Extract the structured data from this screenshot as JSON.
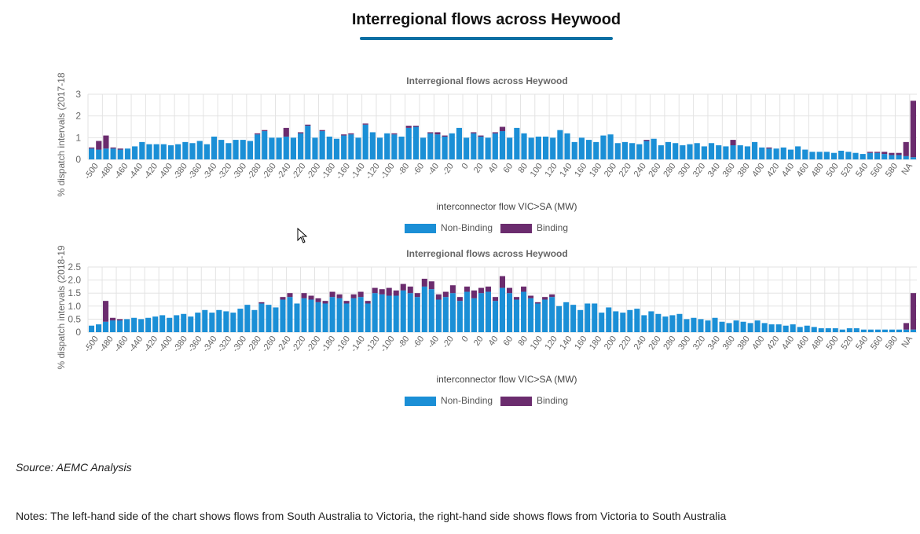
{
  "page": {
    "title": "Interregional flows across Heywood",
    "source": "Source: AEMC Analysis",
    "notes": "Notes: The left-hand side of the chart shows flows from South Australia to Victoria, the right-hand side shows flows from Victoria to South Australia"
  },
  "colors": {
    "non_binding": "#1b8fd6",
    "binding": "#6b2c6e",
    "grid": "#e3e3e3",
    "title_underline": "#0a6fa3"
  },
  "chart_data": [
    {
      "type": "bar",
      "stacked": true,
      "title": "Interregional flows across Heywood",
      "xlabel": "interconnector flow VIC>SA (MW)",
      "ylabel": "% dispatch intervals (2017-18",
      "ylim": [
        0,
        3
      ],
      "yticks": [
        "0",
        "1",
        "2",
        "3"
      ],
      "grid": true,
      "legend": "bottom-center",
      "x_tick_labels": [
        "-500",
        "-480",
        "-460",
        "-440",
        "-420",
        "-400",
        "-380",
        "-360",
        "-340",
        "-320",
        "-300",
        "-280",
        "-260",
        "-240",
        "-220",
        "-200",
        "-180",
        "-160",
        "-140",
        "-120",
        "-100",
        "-80",
        "-60",
        "-40",
        "-20",
        "0",
        "20",
        "40",
        "60",
        "80",
        "100",
        "120",
        "140",
        "160",
        "180",
        "200",
        "220",
        "240",
        "260",
        "280",
        "300",
        "320",
        "340",
        "360",
        "380",
        "400",
        "420",
        "440",
        "460",
        "480",
        "500",
        "520",
        "540",
        "560",
        "580",
        "NA"
      ],
      "series": [
        {
          "name": "Non-Binding",
          "values": [
            0.5,
            0.45,
            0.5,
            0.5,
            0.45,
            0.5,
            0.6,
            0.8,
            0.7,
            0.7,
            0.7,
            0.65,
            0.7,
            0.8,
            0.75,
            0.85,
            0.7,
            1.05,
            0.9,
            0.75,
            0.9,
            0.9,
            0.85,
            1.15,
            1.3,
            1.0,
            1.0,
            1.05,
            1.0,
            1.2,
            1.55,
            1.0,
            1.3,
            1.05,
            0.95,
            1.1,
            1.15,
            1.0,
            1.6,
            1.25,
            1.0,
            1.2,
            1.15,
            1.05,
            1.45,
            1.5,
            1.0,
            1.2,
            1.15,
            1.05,
            1.2,
            1.45,
            1.0,
            1.2,
            1.05,
            1.0,
            1.2,
            1.3,
            1.0,
            1.45,
            1.2,
            1.0,
            1.05,
            1.05,
            1.0,
            1.35,
            1.2,
            0.8,
            1.0,
            0.9,
            0.8,
            1.1,
            1.15,
            0.75,
            0.8,
            0.75,
            0.7,
            0.85,
            0.95,
            0.65,
            0.8,
            0.75,
            0.65,
            0.7,
            0.75,
            0.6,
            0.75,
            0.65,
            0.6,
            0.65,
            0.65,
            0.6,
            0.8,
            0.55,
            0.5,
            0.5,
            0.55,
            0.45,
            0.6,
            0.45,
            0.35,
            0.35,
            0.35,
            0.3,
            0.4,
            0.35,
            0.3,
            0.25,
            0.3,
            0.3,
            0.25,
            0.2,
            0.2,
            0.15,
            0.1
          ],
          "binding": [
            0.05,
            0.4,
            0.6,
            0.05,
            0.05,
            0.0,
            0.0,
            0.0,
            0.0,
            0.0,
            0.0,
            0.0,
            0.0,
            0.0,
            0.0,
            0.0,
            0.0,
            0.0,
            0.0,
            0.0,
            0.0,
            0.0,
            0.0,
            0.05,
            0.05,
            0.0,
            0.0,
            0.4,
            0.0,
            0.05,
            0.05,
            0.0,
            0.05,
            0.0,
            0.0,
            0.05,
            0.05,
            0.0,
            0.05,
            0.0,
            0.0,
            0.0,
            0.05,
            0.0,
            0.1,
            0.05,
            0.0,
            0.05,
            0.1,
            0.05,
            0.0,
            0.0,
            0.0,
            0.05,
            0.05,
            0.0,
            0.05,
            0.2,
            0.0,
            0.0,
            0.0,
            0.0,
            0.0,
            0.0,
            0.0,
            0.0,
            0.0,
            0.0,
            0.0,
            0.0,
            0.0,
            0.0,
            0.0,
            0.0,
            0.0,
            0.0,
            0.0,
            0.05,
            0.0,
            0.0,
            0.0,
            0.0,
            0.0,
            0.0,
            0.0,
            0.0,
            0.0,
            0.0,
            0.0,
            0.25,
            0.0,
            0.0,
            0.0,
            0.0,
            0.05,
            0.0,
            0.0,
            0.0,
            0.0,
            0.0,
            0.0,
            0.0,
            0.0,
            0.0,
            0.0,
            0.0,
            0.0,
            0.0,
            0.05,
            0.05,
            0.1,
            0.1,
            0.1,
            0.65,
            2.6
          ]
        }
      ]
    },
    {
      "type": "bar",
      "stacked": true,
      "title": "Interregional flows across Heywood",
      "xlabel": "interconnector flow VIC>SA (MW)",
      "ylabel": "% dispatch intervals (2018-19",
      "ylim": [
        0,
        2.5
      ],
      "yticks": [
        "0",
        "0.5",
        "1.0",
        "1.5",
        "2.0",
        "2.5"
      ],
      "grid": true,
      "legend": "bottom-center",
      "x_tick_labels": [
        "-500",
        "-480",
        "-460",
        "-440",
        "-420",
        "-400",
        "-380",
        "-360",
        "-340",
        "-320",
        "-300",
        "-280",
        "-260",
        "-240",
        "-220",
        "-200",
        "-180",
        "-160",
        "-140",
        "-120",
        "-100",
        "-80",
        "-60",
        "-40",
        "-20",
        "0",
        "20",
        "40",
        "60",
        "80",
        "100",
        "120",
        "140",
        "160",
        "180",
        "200",
        "220",
        "240",
        "260",
        "280",
        "300",
        "320",
        "340",
        "360",
        "380",
        "400",
        "420",
        "440",
        "460",
        "480",
        "500",
        "520",
        "540",
        "560",
        "580",
        "NA"
      ],
      "series": [
        {
          "name": "Non-Binding",
          "values": [
            0.25,
            0.3,
            0.4,
            0.45,
            0.45,
            0.5,
            0.55,
            0.5,
            0.55,
            0.6,
            0.65,
            0.55,
            0.65,
            0.7,
            0.6,
            0.75,
            0.85,
            0.75,
            0.85,
            0.8,
            0.75,
            0.9,
            1.05,
            0.85,
            1.1,
            1.05,
            0.95,
            1.25,
            1.35,
            1.1,
            1.3,
            1.25,
            1.15,
            1.1,
            1.35,
            1.3,
            1.1,
            1.3,
            1.35,
            1.1,
            1.5,
            1.45,
            1.4,
            1.4,
            1.6,
            1.5,
            1.35,
            1.75,
            1.65,
            1.25,
            1.35,
            1.5,
            1.2,
            1.55,
            1.3,
            1.5,
            1.55,
            1.2,
            1.7,
            1.5,
            1.25,
            1.55,
            1.3,
            1.1,
            1.25,
            1.35,
            1.0,
            1.15,
            1.05,
            0.85,
            1.1,
            1.1,
            0.75,
            0.95,
            0.8,
            0.75,
            0.85,
            0.9,
            0.65,
            0.8,
            0.7,
            0.6,
            0.65,
            0.7,
            0.5,
            0.55,
            0.5,
            0.45,
            0.55,
            0.4,
            0.35,
            0.45,
            0.4,
            0.35,
            0.45,
            0.35,
            0.3,
            0.3,
            0.25,
            0.3,
            0.2,
            0.25,
            0.2,
            0.15,
            0.15,
            0.15,
            0.1,
            0.15,
            0.15,
            0.1,
            0.1,
            0.1,
            0.1,
            0.1,
            0.1,
            0.1,
            0.1
          ],
          "binding": [
            0.0,
            0.0,
            0.8,
            0.1,
            0.05,
            0.0,
            0.0,
            0.0,
            0.0,
            0.0,
            0.0,
            0.0,
            0.0,
            0.0,
            0.0,
            0.0,
            0.0,
            0.0,
            0.0,
            0.0,
            0.0,
            0.0,
            0.0,
            0.0,
            0.05,
            0.0,
            0.0,
            0.1,
            0.15,
            0.0,
            0.2,
            0.15,
            0.15,
            0.1,
            0.2,
            0.15,
            0.1,
            0.15,
            0.2,
            0.1,
            0.2,
            0.2,
            0.3,
            0.2,
            0.25,
            0.25,
            0.15,
            0.3,
            0.3,
            0.2,
            0.2,
            0.3,
            0.15,
            0.2,
            0.3,
            0.2,
            0.2,
            0.15,
            0.45,
            0.2,
            0.1,
            0.2,
            0.1,
            0.05,
            0.1,
            0.1,
            0.0,
            0.0,
            0.0,
            0.0,
            0.0,
            0.0,
            0.0,
            0.0,
            0.0,
            0.0,
            0.0,
            0.0,
            0.0,
            0.0,
            0.0,
            0.0,
            0.0,
            0.0,
            0.0,
            0.0,
            0.0,
            0.0,
            0.0,
            0.0,
            0.0,
            0.0,
            0.0,
            0.0,
            0.0,
            0.0,
            0.0,
            0.0,
            0.0,
            0.0,
            0.0,
            0.0,
            0.0,
            0.0,
            0.0,
            0.0,
            0.0,
            0.0,
            0.0,
            0.0,
            0.0,
            0.0,
            0.0,
            0.0,
            0.0,
            0.25,
            1.4
          ]
        }
      ]
    }
  ]
}
